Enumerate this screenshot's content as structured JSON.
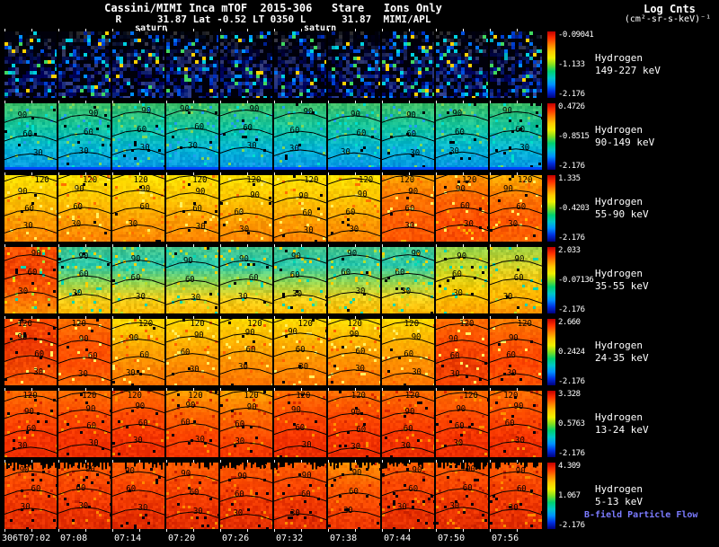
{
  "chart_data": {
    "type": "heatmap",
    "title": "Cassini/MIMI Inca mTOF  2015-306   Stare   Ions Only",
    "ephemeris": "R      31.87 Lat -0.52 LT 0350 L      31.87  MIMI/APL",
    "saturn_markers": [
      "saturn",
      "saturn"
    ],
    "colorbar_title": "Log Cnts",
    "colorbar_units": "(cm²-sr-s-keV)⁻¹",
    "bfield_label": "B-field Particle Flow",
    "bfield_color": "#7b7bff",
    "contour_levels": [
      "30",
      "60",
      "90",
      "120"
    ],
    "time_ticks": [
      "306T07:02",
      "07:08",
      "07:14",
      "07:20",
      "07:26",
      "07:32",
      "07:38",
      "07:44",
      "07:50",
      "07:56"
    ],
    "colorbar_gradient": [
      "#c00000",
      "#ff3000",
      "#ff8000",
      "#ffc800",
      "#f0f000",
      "#80e020",
      "#00d070",
      "#00c8c8",
      "#0090ff",
      "#0030e0",
      "#000080"
    ],
    "rows": [
      {
        "species": "Hydrogen",
        "energy": "149-227 keV",
        "cbar_max": "-0.09041",
        "cbar_mid": "-1.133",
        "cbar_min": "-2.176",
        "contours": [],
        "viz": {
          "block": 4,
          "jitter": 0.22,
          "stops": [
            "#000614",
            "#001060",
            "#001878"
          ],
          "speckle_black": 0.38,
          "speckle_prob": 0.3,
          "speckle_colors": [
            "#0030c0",
            "#0050e0",
            "#0090ff",
            "#00d0e0",
            "#0040d0",
            "#0070f0",
            "#00b0c0",
            "#40d860",
            "#ffd000",
            "#002090"
          ]
        }
      },
      {
        "species": "Hydrogen",
        "energy": "90-149 keV",
        "cbar_max": "0.4726",
        "cbar_mid": "-0.8515",
        "cbar_min": "-2.176",
        "contours": [
          {
            "label": "90",
            "t": 0.18
          },
          {
            "label": "60",
            "t": 0.46
          },
          {
            "label": "30",
            "t": 0.74
          }
        ],
        "viz": {
          "block": 3,
          "jitter": 0.08,
          "stops": [
            "#38bc68",
            "#14c49c",
            "#00b4d4",
            "#0090e4"
          ],
          "speckle_black": 0.012,
          "speckle_prob": 0.06,
          "speckle_colors": [
            "#7cd85c",
            "#00e0cc",
            "#20a0f0"
          ],
          "bottom_strip": "#0048ff"
        }
      },
      {
        "species": "Hydrogen",
        "energy": "55-90 keV",
        "cbar_max": "1.335",
        "cbar_mid": "-0.4203",
        "cbar_min": "-2.176",
        "contours": [
          {
            "label": "120",
            "t": 0.05
          },
          {
            "label": "90",
            "t": 0.31
          },
          {
            "label": "60",
            "t": 0.57
          },
          {
            "label": "30",
            "t": 0.83
          }
        ],
        "viz": {
          "block": 3,
          "jitter": 0.07,
          "stops": [
            "#ffe000",
            "#ffc400",
            "#ff9c00",
            "#ff8000"
          ],
          "speckle_black": 0.01,
          "speckle_prob": 0.06,
          "speckle_colors": [
            "#fff060",
            "#ff7000",
            "#ffb000"
          ],
          "col_stops": {
            "7": [
              "#ffa000",
              "#ff7400",
              "#ff5c00",
              "#ff5400"
            ],
            "8": [
              "#ff9400",
              "#ff6400",
              "#ff4c00",
              "#ff5000"
            ],
            "9": [
              "#ffac00",
              "#ff7400",
              "#ff5400",
              "#ff6400"
            ]
          }
        }
      },
      {
        "species": "Hydrogen",
        "energy": "35-55 keV",
        "cbar_max": "2.033",
        "cbar_mid": "-0.07136",
        "cbar_min": "-2.176",
        "contours": [
          {
            "label": "90",
            "t": 0.2
          },
          {
            "label": "60",
            "t": 0.48
          },
          {
            "label": "30",
            "t": 0.76
          }
        ],
        "viz": {
          "block": 3,
          "jitter": 0.08,
          "stops": [
            "#44c48c",
            "#28c8ac",
            "#8cd454",
            "#f0d01c",
            "#ffb400"
          ],
          "speckle_black": 0.012,
          "speckle_prob": 0.07,
          "speckle_colors": [
            "#00d8b4",
            "#b0e030",
            "#ffd000"
          ],
          "col_stops": {
            "0": [
              "#ff5400",
              "#f04000",
              "#ff5c00",
              "#ff9400"
            ],
            "8": [
              "#94d048",
              "#ccd824",
              "#ffc800",
              "#ff9c00"
            ],
            "9": [
              "#a0d040",
              "#e0d020",
              "#ffb800",
              "#ff9000"
            ]
          }
        }
      },
      {
        "species": "Hydrogen",
        "energy": "24-35 keV",
        "cbar_max": "2.660",
        "cbar_mid": "0.2424",
        "cbar_min": "-2.176",
        "contours": [
          {
            "label": "120",
            "t": 0.05
          },
          {
            "label": "90",
            "t": 0.3
          },
          {
            "label": "60",
            "t": 0.56
          },
          {
            "label": "30",
            "t": 0.82
          }
        ],
        "viz": {
          "block": 3,
          "jitter": 0.06,
          "stops": [
            "#ffd800",
            "#ffb000",
            "#ff8c00",
            "#ff7400"
          ],
          "speckle_black": 0.01,
          "speckle_prob": 0.05,
          "speckle_colors": [
            "#fff060",
            "#ff6000"
          ],
          "col_stops": {
            "0": [
              "#ff4c00",
              "#e83400",
              "#f04400",
              "#ff5c00"
            ],
            "1": [
              "#ff7400",
              "#ff5400",
              "#ff4c00",
              "#ff6c00"
            ],
            "8": [
              "#ff6c00",
              "#ff4c00",
              "#ec3c00",
              "#f44400"
            ],
            "9": [
              "#ff7c00",
              "#ff5400",
              "#ff4400",
              "#ff5400"
            ]
          }
        }
      },
      {
        "species": "Hydrogen",
        "energy": "13-24 keV",
        "cbar_max": "3.328",
        "cbar_mid": "0.5763",
        "cbar_min": "-2.176",
        "contours": [
          {
            "label": "120",
            "t": 0.06
          },
          {
            "label": "90",
            "t": 0.32
          },
          {
            "label": "60",
            "t": 0.58
          },
          {
            "label": "30",
            "t": 0.84
          }
        ],
        "viz": {
          "block": 3,
          "jitter": 0.05,
          "stops": [
            "#ff6c00",
            "#ff4c00",
            "#f43400",
            "#ec2c00"
          ],
          "speckle_black": 0.012,
          "speckle_prob": 0.05,
          "speckle_colors": [
            "#ff9000",
            "#d82800"
          ],
          "col_stops": {
            "3": [
              "#ff9c00",
              "#ff6400",
              "#ff4400",
              "#f43400"
            ],
            "4": [
              "#ffa400",
              "#ff6c00",
              "#ff4c00",
              "#f43400"
            ]
          }
        }
      },
      {
        "species": "Hydrogen",
        "energy": "5-13 keV",
        "cbar_max": "4.309",
        "cbar_mid": "1.067",
        "cbar_min": "-2.176",
        "contours": [
          {
            "label": "90",
            "t": 0.2
          },
          {
            "label": "60",
            "t": 0.48
          },
          {
            "label": "30",
            "t": 0.76
          }
        ],
        "viz": {
          "block": 3,
          "jitter": 0.06,
          "stops": [
            "#ff5c00",
            "#f84400",
            "#ec3400",
            "#e02c00"
          ],
          "speckle_black": 0.03,
          "speckle_prob": 0.05,
          "speckle_colors": [
            "#ff8800",
            "#c82000"
          ],
          "top_black": 7,
          "col_stops": {
            "6": [
              "#ff8c00",
              "#ff5c00",
              "#f44400",
              "#ec3400"
            ]
          }
        }
      }
    ]
  }
}
